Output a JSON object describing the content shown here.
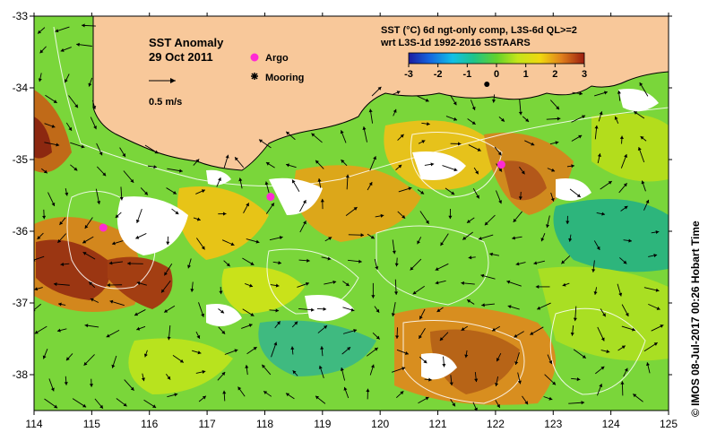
{
  "map": {
    "title": "SST Anomaly",
    "date": "29 Oct 2011",
    "scale_label": "0.5 m/s",
    "legend_argo": "Argo",
    "legend_mooring": "Mooring",
    "colorbar_title_line1": "SST (°C) 6d ngt-only comp, L3S-6d QL>=2",
    "colorbar_title_line2": "wrt L3S-1d 1992-2016 SSTAARS",
    "colorbar_ticks": [
      "-3",
      "-2",
      "-1",
      "0",
      "1",
      "2",
      "3"
    ],
    "credit": "© IMOS 08-Jul-2017 00:26 Hobart Time",
    "x_ticks": [
      "114",
      "115",
      "116",
      "117",
      "118",
      "119",
      "120",
      "121",
      "122",
      "123",
      "124",
      "125"
    ],
    "y_ticks": [
      "-33",
      "-34",
      "-35",
      "-36",
      "-37",
      "-38"
    ],
    "colors": {
      "land": "#f8c89a",
      "green": "#6dd431",
      "lime": "#b6e51c",
      "yellow": "#e9da10",
      "orange": "#d58a1f",
      "brown": "#9b3310",
      "teal": "#2fb07a",
      "argo": "#ff2ad4"
    },
    "argo_points": [
      {
        "lon": 115.2,
        "lat": -35.95
      },
      {
        "lon": 118.1,
        "lat": -35.52
      },
      {
        "lon": 122.1,
        "lat": -35.07
      }
    ],
    "mooring_points": [
      {
        "lon": 121.85,
        "lat": -33.95
      }
    ]
  }
}
